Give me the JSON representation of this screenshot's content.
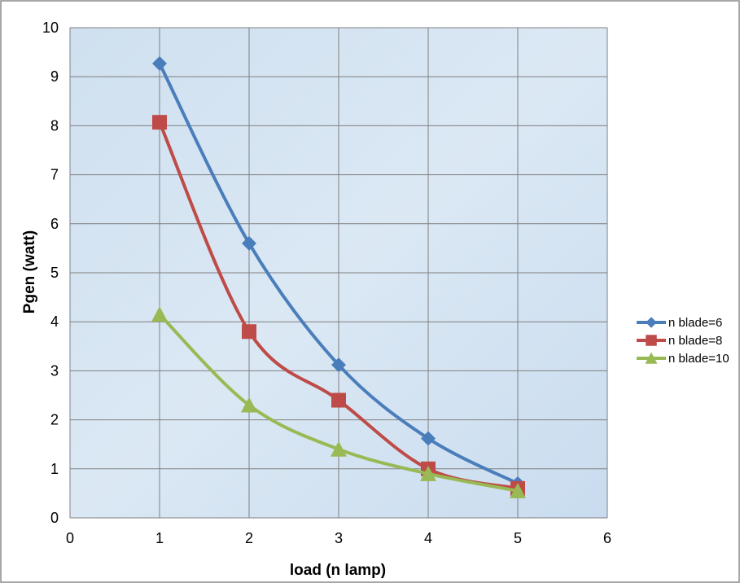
{
  "chart_data": {
    "type": "line",
    "title": "",
    "xlabel": "load (n lamp)",
    "ylabel": "Pgen (watt)",
    "xlim": [
      0,
      6
    ],
    "ylim": [
      0,
      10
    ],
    "xticks": [
      0,
      1,
      2,
      3,
      4,
      5,
      6
    ],
    "yticks": [
      0,
      1,
      2,
      3,
      4,
      5,
      6,
      7,
      8,
      9,
      10
    ],
    "grid": true,
    "smooth": true,
    "legend_position": "right",
    "x": [
      1,
      2,
      3,
      4,
      5
    ],
    "series": [
      {
        "name": "n blade=6",
        "values": [
          9.27,
          5.6,
          3.12,
          1.62,
          0.7
        ],
        "color": "#4a7ebb",
        "marker": "diamond"
      },
      {
        "name": "n blade=8",
        "values": [
          8.07,
          3.8,
          2.4,
          1.0,
          0.6
        ],
        "color": "#be4b48",
        "marker": "square"
      },
      {
        "name": "n blade=10",
        "values": [
          4.15,
          2.3,
          1.4,
          0.9,
          0.55
        ],
        "color": "#98b954",
        "marker": "triangle"
      }
    ]
  }
}
